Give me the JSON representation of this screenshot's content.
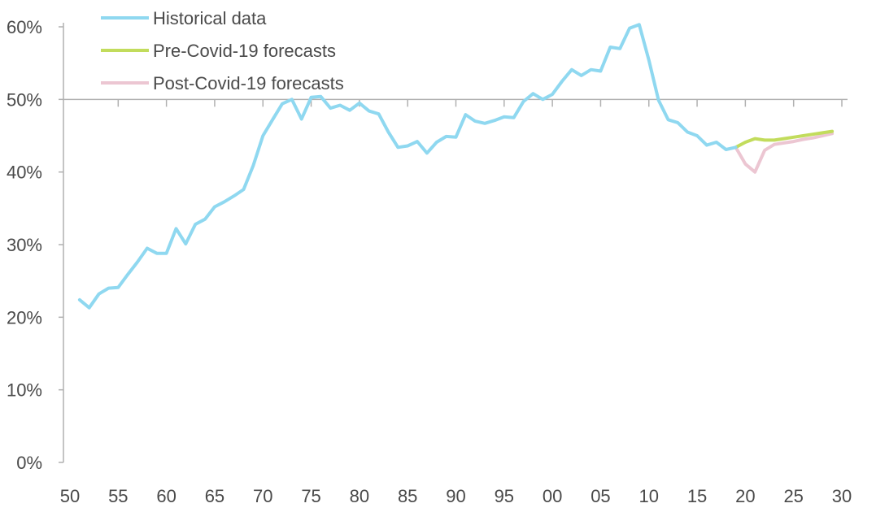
{
  "chart_data": {
    "type": "line",
    "title": "",
    "xlabel": "",
    "ylabel": "",
    "xlim": [
      1950,
      2030
    ],
    "ylim": [
      0,
      60
    ],
    "grid": false,
    "legend_position": "top-left",
    "x_tick_labels": [
      "50",
      "55",
      "60",
      "65",
      "70",
      "75",
      "80",
      "85",
      "90",
      "95",
      "00",
      "05",
      "10",
      "15",
      "20",
      "25",
      "30"
    ],
    "x_tick_values": [
      1950,
      1955,
      1960,
      1965,
      1970,
      1975,
      1980,
      1985,
      1990,
      1995,
      2000,
      2005,
      2010,
      2015,
      2020,
      2025,
      2030
    ],
    "y_tick_labels": [
      "0%",
      "10%",
      "20%",
      "30%",
      "40%",
      "50%",
      "60%"
    ],
    "y_tick_values": [
      0,
      10,
      20,
      30,
      40,
      50,
      60
    ],
    "colors": {
      "historical": "#8fd8f0",
      "pre_covid": "#c2dc5c",
      "post_covid": "#ecc6d2",
      "axis": "#b0b0b0",
      "text": "#4a4a4a"
    },
    "series": [
      {
        "name": "Historical data",
        "key": "historical",
        "x": [
          1951,
          1952,
          1953,
          1954,
          1955,
          1956,
          1957,
          1958,
          1959,
          1960,
          1961,
          1962,
          1963,
          1964,
          1965,
          1966,
          1967,
          1968,
          1969,
          1970,
          1971,
          1972,
          1973,
          1974,
          1975,
          1976,
          1977,
          1978,
          1979,
          1980,
          1981,
          1982,
          1983,
          1984,
          1985,
          1986,
          1987,
          1988,
          1989,
          1990,
          1991,
          1992,
          1993,
          1994,
          1995,
          1996,
          1997,
          1998,
          1999,
          2000,
          2001,
          2002,
          2003,
          2004,
          2005,
          2006,
          2007,
          2008,
          2009,
          2010,
          2011,
          2012,
          2013,
          2014,
          2015,
          2016,
          2017,
          2018,
          2019
        ],
        "values": [
          22.4,
          21.3,
          23.2,
          24.0,
          24.1,
          25.9,
          27.6,
          29.5,
          28.8,
          28.8,
          32.2,
          30.1,
          32.8,
          33.5,
          35.2,
          35.9,
          36.7,
          37.6,
          40.9,
          45.0,
          47.2,
          49.4,
          50.0,
          47.3,
          50.3,
          50.4,
          48.8,
          49.2,
          48.5,
          49.5,
          48.4,
          48.0,
          45.5,
          43.4,
          43.6,
          44.2,
          42.6,
          44.1,
          44.9,
          44.8,
          47.9,
          47.0,
          46.7,
          47.1,
          47.6,
          47.5,
          49.7,
          50.8,
          50.0,
          50.7,
          52.5,
          54.1,
          53.3,
          54.1,
          53.9,
          57.2,
          57.0,
          59.8,
          60.3,
          55.4,
          49.9,
          47.2,
          46.8,
          45.5,
          45.0,
          43.7,
          44.1,
          43.1,
          43.4
        ]
      },
      {
        "name": "Pre-Covid-19 forecasts",
        "key": "pre_covid",
        "x": [
          2019,
          2020,
          2021,
          2022,
          2023,
          2024,
          2025,
          2026,
          2027,
          2028,
          2029
        ],
        "values": [
          43.4,
          44.1,
          44.6,
          44.4,
          44.4,
          44.6,
          44.8,
          45.0,
          45.2,
          45.4,
          45.6
        ]
      },
      {
        "name": "Post-Covid-19 forecasts",
        "key": "post_covid",
        "x": [
          2019,
          2020,
          2021,
          2022,
          2023,
          2024,
          2025,
          2026,
          2027,
          2028,
          2029
        ],
        "values": [
          43.4,
          41.1,
          40.0,
          43.0,
          43.8,
          44.0,
          44.2,
          44.5,
          44.7,
          45.0,
          45.3
        ]
      }
    ]
  }
}
